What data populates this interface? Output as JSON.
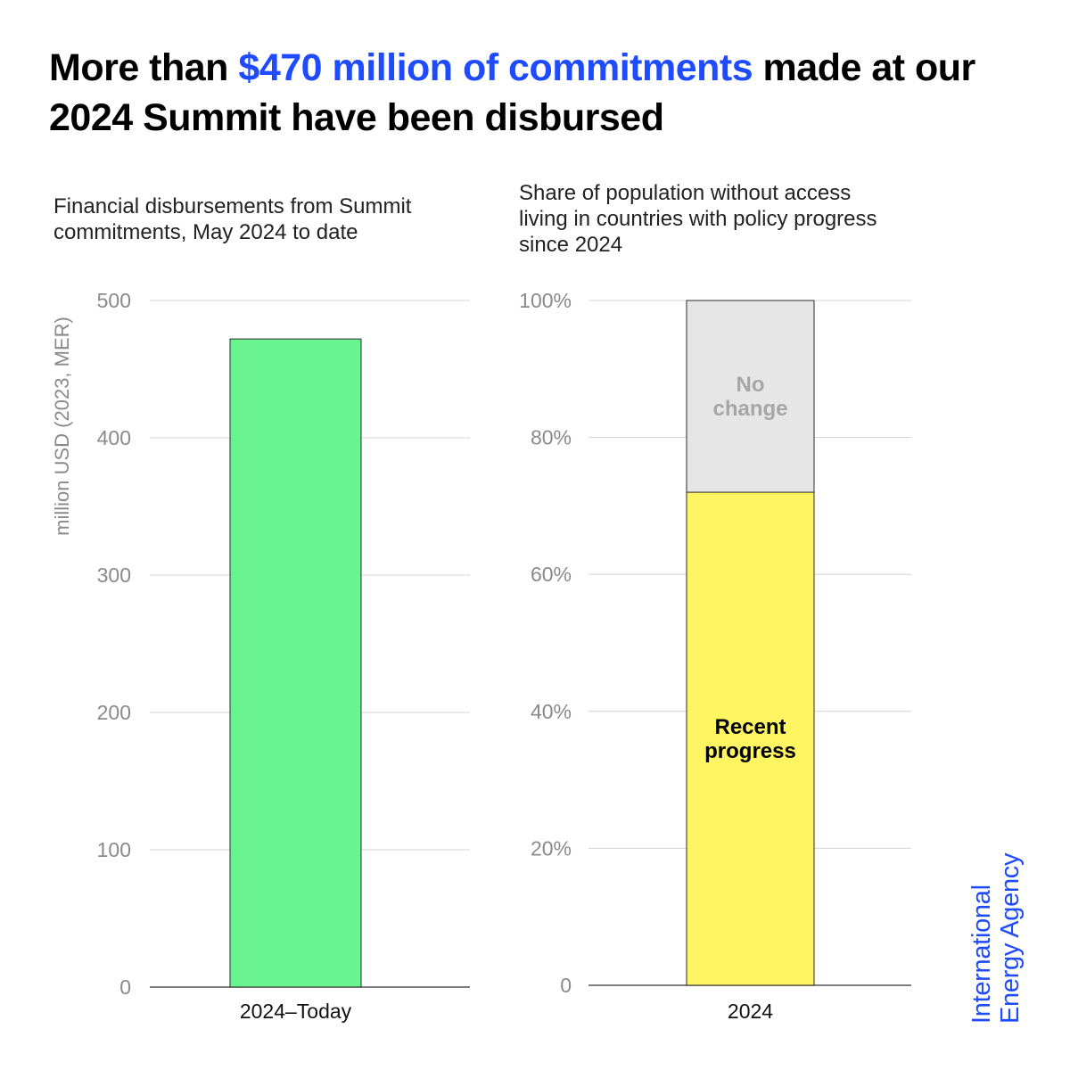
{
  "headline": {
    "before": "More than ",
    "highlight": "$470 million of commitments",
    "after": " made at our 2024 Summit have been disbursed",
    "highlight_color": "#1f4bff"
  },
  "logo": {
    "line1": "International",
    "line2": "Energy Agency",
    "color": "#1f4bff"
  },
  "chart_data": [
    {
      "type": "bar",
      "title": "Financial disbursements from Summit commitments, May 2024 to date",
      "ylabel": "million USD (2023, MER)",
      "categories": [
        "2024–Today"
      ],
      "values": [
        472
      ],
      "ylim": [
        0,
        500
      ],
      "yticks": [
        0,
        100,
        200,
        300,
        400,
        500
      ],
      "ytick_labels": [
        "0",
        "100",
        "200",
        "300",
        "400",
        "500"
      ],
      "grid": true,
      "color": "#6af48f"
    },
    {
      "type": "bar",
      "stacked": true,
      "title": "Share of population without access living in countries with policy progress since 2024",
      "categories": [
        "2024"
      ],
      "series": [
        {
          "name": "Recent progress",
          "values": [
            72
          ],
          "color": "#fff562"
        },
        {
          "name": "No change",
          "values": [
            28
          ],
          "color": "#e6e6e6"
        }
      ],
      "ylim": [
        0,
        100
      ],
      "yticks": [
        0,
        20,
        40,
        60,
        80,
        100
      ],
      "ytick_labels": [
        "0",
        "20%",
        "40%",
        "60%",
        "80%",
        "100%"
      ],
      "grid": true
    }
  ]
}
